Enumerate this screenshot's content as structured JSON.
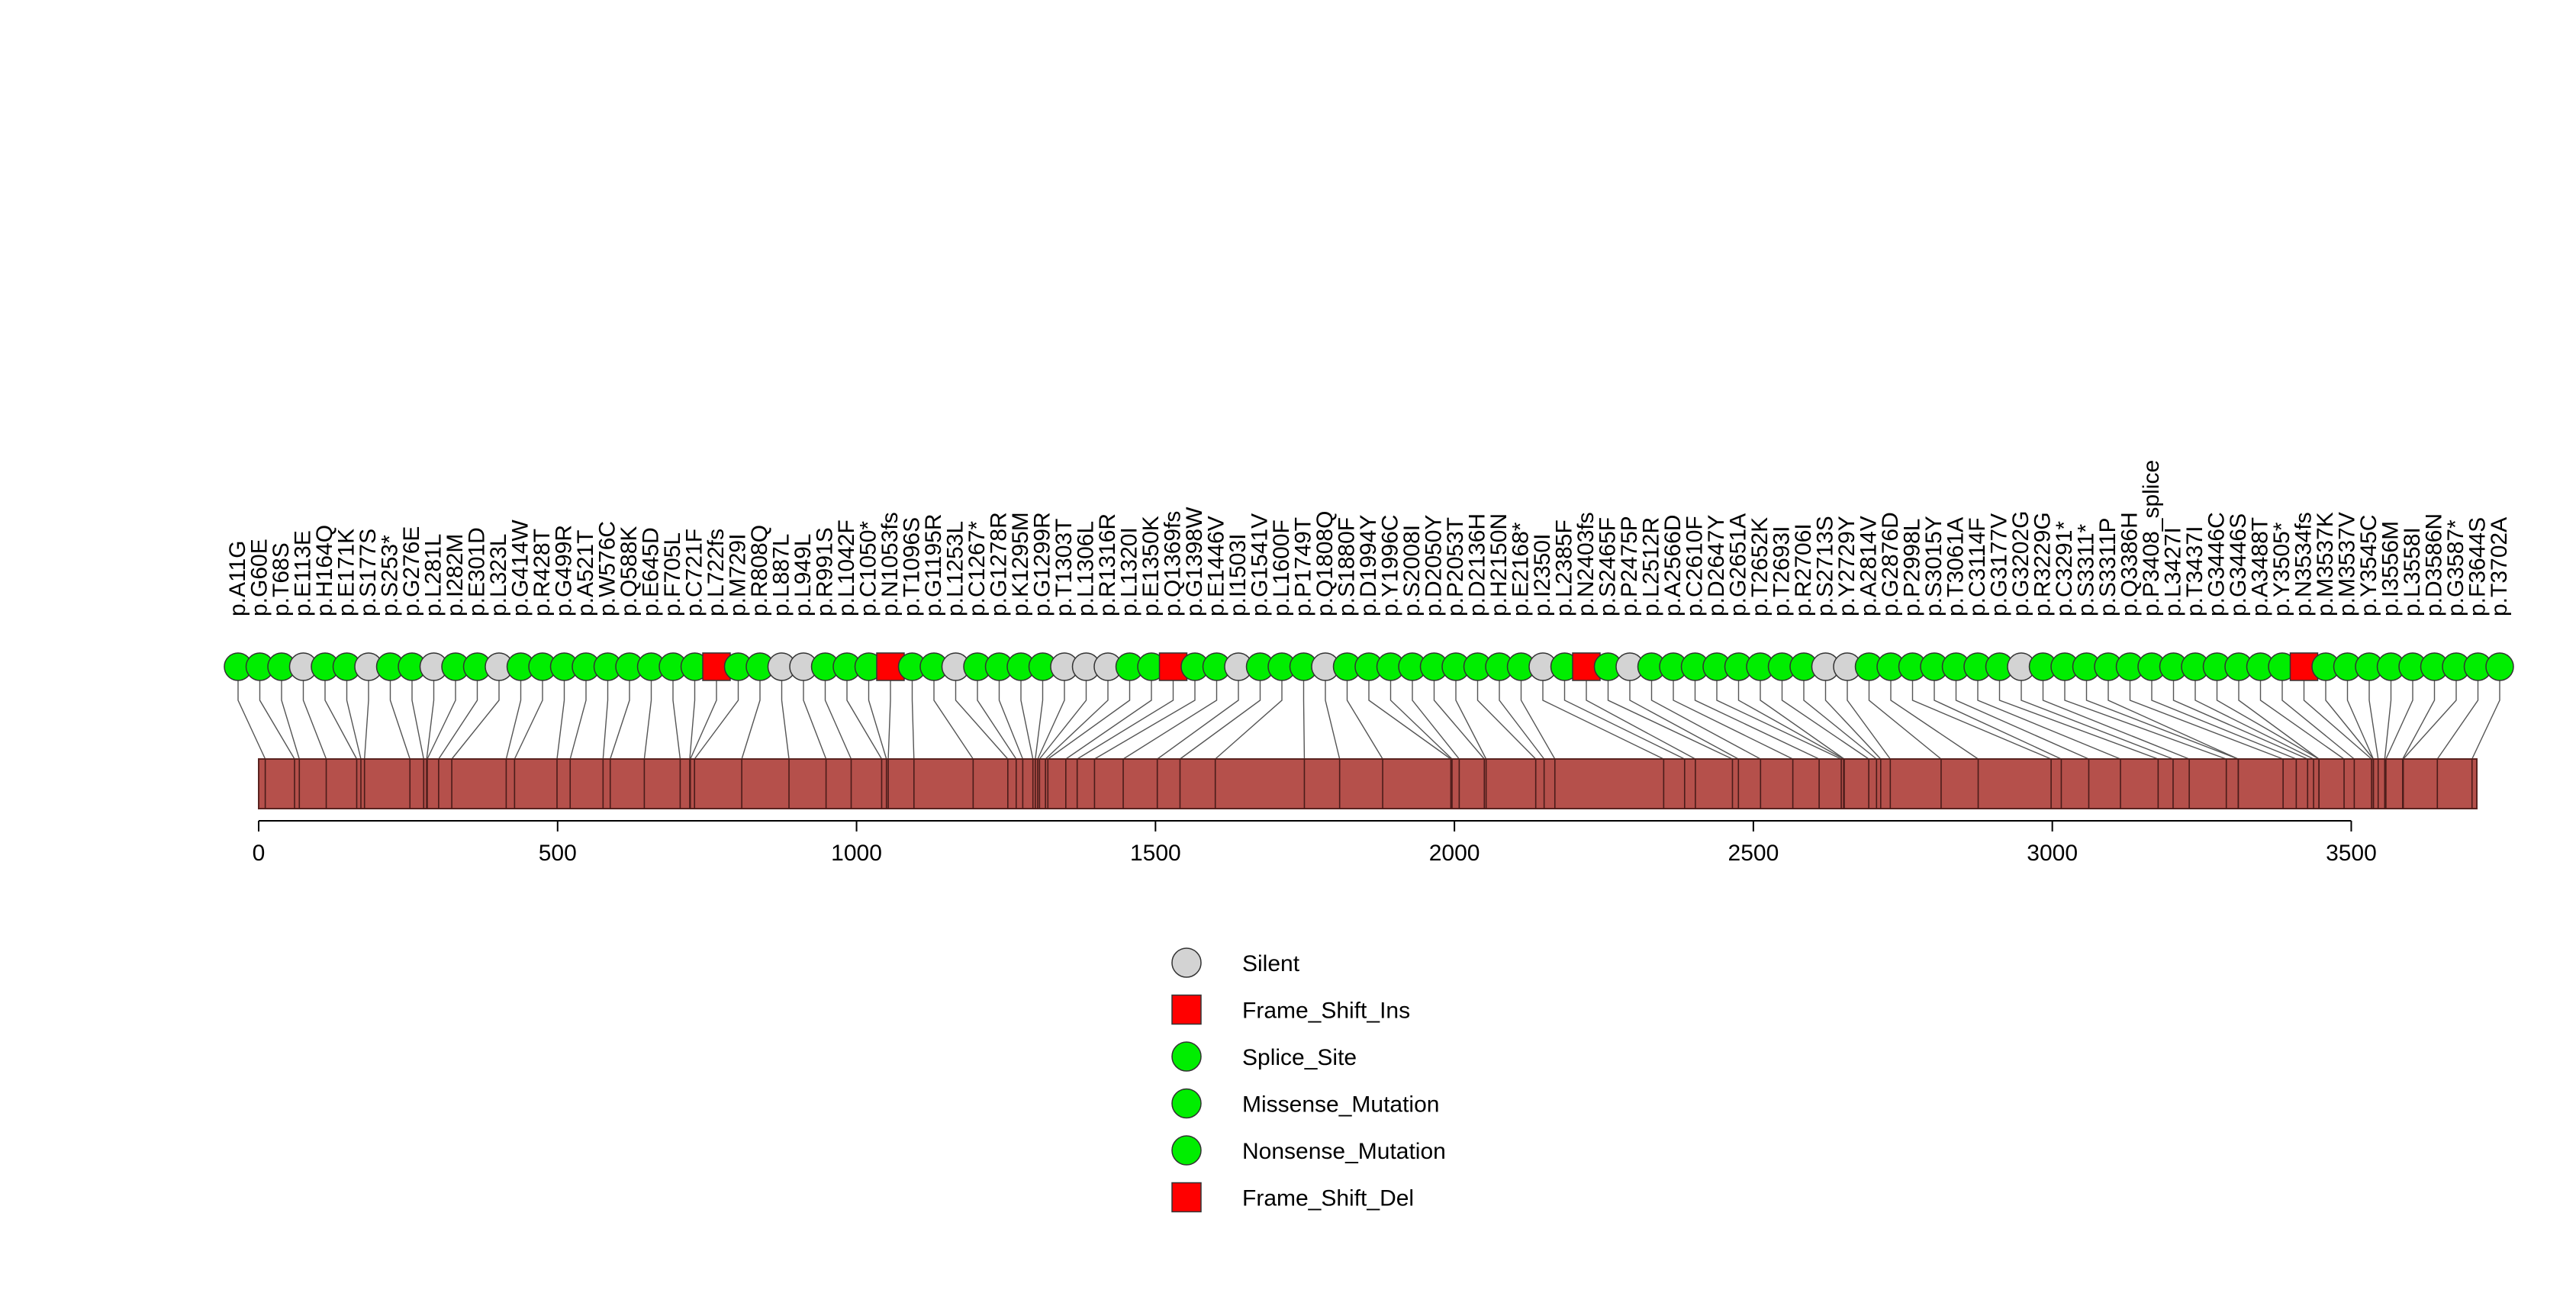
{
  "chart_data": {
    "type": "lollipop",
    "title": "",
    "xlabel": "",
    "ylabel": "",
    "protein_length": 3710,
    "xlim": [
      0,
      3710
    ],
    "x_ticks": [
      0,
      500,
      1000,
      1500,
      2000,
      2500,
      3000,
      3500
    ],
    "mutation_types": [
      {
        "name": "Silent",
        "shape": "circle",
        "color": "#d3d3d3"
      },
      {
        "name": "Frame_Shift_Ins",
        "shape": "square",
        "color": "#ff0000"
      },
      {
        "name": "Splice_Site",
        "shape": "circle",
        "color": "#00ee00"
      },
      {
        "name": "Missense_Mutation",
        "shape": "circle",
        "color": "#00ee00"
      },
      {
        "name": "Nonsense_Mutation",
        "shape": "circle",
        "color": "#00ee00"
      },
      {
        "name": "Frame_Shift_Del",
        "shape": "square",
        "color": "#ff0000"
      }
    ],
    "mutations": [
      {
        "label": "p.A11G",
        "pos": 11,
        "type": "Missense_Mutation"
      },
      {
        "label": "p.G60E",
        "pos": 60,
        "type": "Missense_Mutation"
      },
      {
        "label": "p.T68S",
        "pos": 68,
        "type": "Missense_Mutation"
      },
      {
        "label": "p.E113E",
        "pos": 113,
        "type": "Silent"
      },
      {
        "label": "p.H164Q",
        "pos": 164,
        "type": "Missense_Mutation"
      },
      {
        "label": "p.E171K",
        "pos": 171,
        "type": "Missense_Mutation"
      },
      {
        "label": "p.S177S",
        "pos": 177,
        "type": "Silent"
      },
      {
        "label": "p.S253*",
        "pos": 253,
        "type": "Nonsense_Mutation"
      },
      {
        "label": "p.G276E",
        "pos": 276,
        "type": "Missense_Mutation"
      },
      {
        "label": "p.L281L",
        "pos": 281,
        "type": "Silent"
      },
      {
        "label": "p.I282M",
        "pos": 282,
        "type": "Missense_Mutation"
      },
      {
        "label": "p.E301D",
        "pos": 301,
        "type": "Missense_Mutation"
      },
      {
        "label": "p.L323L",
        "pos": 323,
        "type": "Silent"
      },
      {
        "label": "p.G414W",
        "pos": 414,
        "type": "Missense_Mutation"
      },
      {
        "label": "p.R428T",
        "pos": 428,
        "type": "Missense_Mutation"
      },
      {
        "label": "p.G499R",
        "pos": 499,
        "type": "Missense_Mutation"
      },
      {
        "label": "p.A521T",
        "pos": 521,
        "type": "Missense_Mutation"
      },
      {
        "label": "p.W576C",
        "pos": 576,
        "type": "Missense_Mutation"
      },
      {
        "label": "p.Q588K",
        "pos": 588,
        "type": "Missense_Mutation"
      },
      {
        "label": "p.E645D",
        "pos": 645,
        "type": "Missense_Mutation"
      },
      {
        "label": "p.F705L",
        "pos": 705,
        "type": "Missense_Mutation"
      },
      {
        "label": "p.C721F",
        "pos": 721,
        "type": "Missense_Mutation"
      },
      {
        "label": "p.L722fs",
        "pos": 722,
        "type": "Frame_Shift_Del"
      },
      {
        "label": "p.M729I",
        "pos": 729,
        "type": "Missense_Mutation"
      },
      {
        "label": "p.R808Q",
        "pos": 808,
        "type": "Missense_Mutation"
      },
      {
        "label": "p.L887L",
        "pos": 887,
        "type": "Silent"
      },
      {
        "label": "p.L949L",
        "pos": 949,
        "type": "Silent"
      },
      {
        "label": "p.R991S",
        "pos": 991,
        "type": "Missense_Mutation"
      },
      {
        "label": "p.L1042F",
        "pos": 1042,
        "type": "Missense_Mutation"
      },
      {
        "label": "p.C1050*",
        "pos": 1050,
        "type": "Nonsense_Mutation"
      },
      {
        "label": "p.N1053fs",
        "pos": 1053,
        "type": "Frame_Shift_Ins"
      },
      {
        "label": "p.T1096S",
        "pos": 1096,
        "type": "Missense_Mutation"
      },
      {
        "label": "p.G1195R",
        "pos": 1195,
        "type": "Missense_Mutation"
      },
      {
        "label": "p.L1253L",
        "pos": 1253,
        "type": "Silent"
      },
      {
        "label": "p.C1267*",
        "pos": 1267,
        "type": "Nonsense_Mutation"
      },
      {
        "label": "p.G1278R",
        "pos": 1278,
        "type": "Missense_Mutation"
      },
      {
        "label": "p.K1295M",
        "pos": 1295,
        "type": "Missense_Mutation"
      },
      {
        "label": "p.G1299R",
        "pos": 1299,
        "type": "Missense_Mutation"
      },
      {
        "label": "p.T1303T",
        "pos": 1303,
        "type": "Silent"
      },
      {
        "label": "p.L1306L",
        "pos": 1306,
        "type": "Silent"
      },
      {
        "label": "p.R1316R",
        "pos": 1316,
        "type": "Silent"
      },
      {
        "label": "p.L1320I",
        "pos": 1320,
        "type": "Missense_Mutation"
      },
      {
        "label": "p.E1350K",
        "pos": 1350,
        "type": "Missense_Mutation"
      },
      {
        "label": "p.Q1369fs",
        "pos": 1369,
        "type": "Frame_Shift_Del"
      },
      {
        "label": "p.G1398W",
        "pos": 1398,
        "type": "Missense_Mutation"
      },
      {
        "label": "p.E1446V",
        "pos": 1446,
        "type": "Missense_Mutation"
      },
      {
        "label": "p.I1503I",
        "pos": 1503,
        "type": "Silent"
      },
      {
        "label": "p.G1541V",
        "pos": 1541,
        "type": "Missense_Mutation"
      },
      {
        "label": "p.L1600F",
        "pos": 1600,
        "type": "Missense_Mutation"
      },
      {
        "label": "p.P1749T",
        "pos": 1749,
        "type": "Missense_Mutation"
      },
      {
        "label": "p.Q1808Q",
        "pos": 1808,
        "type": "Silent"
      },
      {
        "label": "p.S1880F",
        "pos": 1880,
        "type": "Missense_Mutation"
      },
      {
        "label": "p.D1994Y",
        "pos": 1994,
        "type": "Missense_Mutation"
      },
      {
        "label": "p.Y1996C",
        "pos": 1996,
        "type": "Missense_Mutation"
      },
      {
        "label": "p.S2008I",
        "pos": 2008,
        "type": "Missense_Mutation"
      },
      {
        "label": "p.D2050Y",
        "pos": 2050,
        "type": "Missense_Mutation"
      },
      {
        "label": "p.P2053T",
        "pos": 2053,
        "type": "Missense_Mutation"
      },
      {
        "label": "p.D2136H",
        "pos": 2136,
        "type": "Missense_Mutation"
      },
      {
        "label": "p.H2150N",
        "pos": 2150,
        "type": "Missense_Mutation"
      },
      {
        "label": "p.E2168*",
        "pos": 2168,
        "type": "Nonsense_Mutation"
      },
      {
        "label": "p.I2350I",
        "pos": 2350,
        "type": "Silent"
      },
      {
        "label": "p.L2385F",
        "pos": 2385,
        "type": "Missense_Mutation"
      },
      {
        "label": "p.N2403fs",
        "pos": 2403,
        "type": "Frame_Shift_Ins"
      },
      {
        "label": "p.S2465F",
        "pos": 2465,
        "type": "Missense_Mutation"
      },
      {
        "label": "p.P2475P",
        "pos": 2475,
        "type": "Silent"
      },
      {
        "label": "p.L2512R",
        "pos": 2512,
        "type": "Missense_Mutation"
      },
      {
        "label": "p.A2566D",
        "pos": 2566,
        "type": "Missense_Mutation"
      },
      {
        "label": "p.C2610F",
        "pos": 2610,
        "type": "Missense_Mutation"
      },
      {
        "label": "p.D2647Y",
        "pos": 2647,
        "type": "Missense_Mutation"
      },
      {
        "label": "p.G2651A",
        "pos": 2651,
        "type": "Missense_Mutation"
      },
      {
        "label": "p.T2652K",
        "pos": 2652,
        "type": "Missense_Mutation"
      },
      {
        "label": "p.T2693I",
        "pos": 2693,
        "type": "Missense_Mutation"
      },
      {
        "label": "p.R2706I",
        "pos": 2706,
        "type": "Missense_Mutation"
      },
      {
        "label": "p.S2713S",
        "pos": 2713,
        "type": "Silent"
      },
      {
        "label": "p.Y2729Y",
        "pos": 2729,
        "type": "Silent"
      },
      {
        "label": "p.A2814V",
        "pos": 2814,
        "type": "Missense_Mutation"
      },
      {
        "label": "p.G2876D",
        "pos": 2876,
        "type": "Missense_Mutation"
      },
      {
        "label": "p.P2998L",
        "pos": 2998,
        "type": "Missense_Mutation"
      },
      {
        "label": "p.S3015Y",
        "pos": 3015,
        "type": "Missense_Mutation"
      },
      {
        "label": "p.T3061A",
        "pos": 3061,
        "type": "Missense_Mutation"
      },
      {
        "label": "p.C3114F",
        "pos": 3114,
        "type": "Missense_Mutation"
      },
      {
        "label": "p.G3177V",
        "pos": 3177,
        "type": "Missense_Mutation"
      },
      {
        "label": "p.G3202G",
        "pos": 3202,
        "type": "Silent"
      },
      {
        "label": "p.R3229G",
        "pos": 3229,
        "type": "Missense_Mutation"
      },
      {
        "label": "p.C3291*",
        "pos": 3291,
        "type": "Nonsense_Mutation"
      },
      {
        "label": "p.S3311*",
        "pos": 3311,
        "type": "Nonsense_Mutation"
      },
      {
        "label": "p.S3311P",
        "pos": 3311,
        "type": "Missense_Mutation"
      },
      {
        "label": "p.Q3386H",
        "pos": 3386,
        "type": "Missense_Mutation"
      },
      {
        "label": "p.P3408_splice",
        "pos": 3408,
        "type": "Splice_Site"
      },
      {
        "label": "p.L3427I",
        "pos": 3427,
        "type": "Missense_Mutation"
      },
      {
        "label": "p.T3437I",
        "pos": 3437,
        "type": "Missense_Mutation"
      },
      {
        "label": "p.G3446C",
        "pos": 3446,
        "type": "Missense_Mutation"
      },
      {
        "label": "p.G3446S",
        "pos": 3446,
        "type": "Missense_Mutation"
      },
      {
        "label": "p.A3488T",
        "pos": 3488,
        "type": "Missense_Mutation"
      },
      {
        "label": "p.Y3505*",
        "pos": 3505,
        "type": "Nonsense_Mutation"
      },
      {
        "label": "p.N3534fs",
        "pos": 3534,
        "type": "Frame_Shift_Del"
      },
      {
        "label": "p.M3537K",
        "pos": 3537,
        "type": "Missense_Mutation"
      },
      {
        "label": "p.M3537V",
        "pos": 3537,
        "type": "Missense_Mutation"
      },
      {
        "label": "p.Y3545C",
        "pos": 3545,
        "type": "Missense_Mutation"
      },
      {
        "label": "p.I3556M",
        "pos": 3556,
        "type": "Missense_Mutation"
      },
      {
        "label": "p.L3558I",
        "pos": 3558,
        "type": "Missense_Mutation"
      },
      {
        "label": "p.D3586N",
        "pos": 3586,
        "type": "Missense_Mutation"
      },
      {
        "label": "p.G3587*",
        "pos": 3587,
        "type": "Nonsense_Mutation"
      },
      {
        "label": "p.F3644S",
        "pos": 3644,
        "type": "Missense_Mutation"
      },
      {
        "label": "p.T3702A",
        "pos": 3702,
        "type": "Missense_Mutation"
      }
    ]
  }
}
